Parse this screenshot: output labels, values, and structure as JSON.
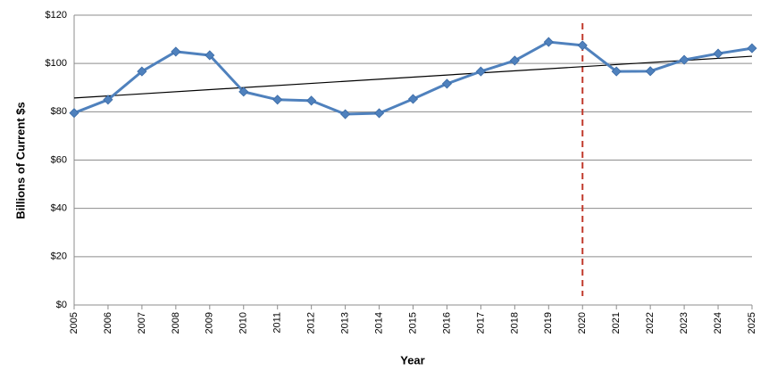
{
  "chart_data": {
    "type": "line",
    "x_label": "Year",
    "y_label": "Billions of Current $s",
    "x": [
      2005,
      2006,
      2007,
      2008,
      2009,
      2010,
      2011,
      2012,
      2013,
      2014,
      2015,
      2016,
      2017,
      2018,
      2019,
      2020,
      2021,
      2022,
      2023,
      2024,
      2025
    ],
    "values": [
      79.5,
      85,
      96.7,
      104.9,
      103.4,
      88.3,
      85,
      84.6,
      79,
      79.4,
      85.3,
      91.6,
      96.7,
      101.2,
      108.9,
      107.5,
      96.7,
      96.8,
      101.5,
      104.1,
      106.3
    ],
    "color": "#4f81bd",
    "trendline": {
      "x": [
        2005,
        2025
      ],
      "values": [
        85.7,
        103
      ],
      "color": "#000000"
    },
    "vline": {
      "x": 2020,
      "color": "#c0392b"
    },
    "xlim": [
      2005,
      2025
    ],
    "xticks": [
      2005,
      2006,
      2007,
      2008,
      2009,
      2010,
      2011,
      2012,
      2013,
      2014,
      2015,
      2016,
      2017,
      2018,
      2019,
      2020,
      2021,
      2022,
      2023,
      2024,
      2025
    ],
    "ylim": [
      0,
      120
    ],
    "yticks": [
      {
        "value": 0,
        "label": "$0"
      },
      {
        "value": 20,
        "label": "$20"
      },
      {
        "value": 40,
        "label": "$40"
      },
      {
        "value": 60,
        "label": "$60"
      },
      {
        "value": 80,
        "label": "$80"
      },
      {
        "value": 100,
        "label": "$100"
      },
      {
        "value": 120,
        "label": "$120"
      }
    ],
    "grid": true
  }
}
